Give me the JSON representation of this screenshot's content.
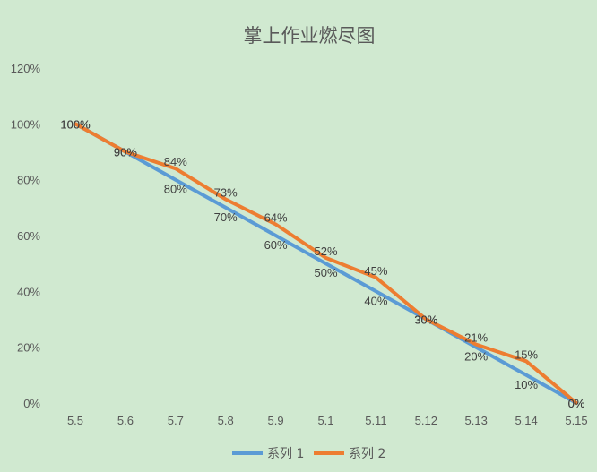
{
  "chart_data": {
    "type": "line",
    "title": "掌上作业燃尽图",
    "xlabel": "",
    "ylabel": "",
    "categories": [
      "5.5",
      "5.6",
      "5.7",
      "5.8",
      "5.9",
      "5.1",
      "5.11",
      "5.12",
      "5.13",
      "5.14",
      "5.15"
    ],
    "ylim": [
      0,
      120
    ],
    "yticks": [
      "0%",
      "20%",
      "40%",
      "60%",
      "80%",
      "100%",
      "120%"
    ],
    "grid": false,
    "legend_position": "bottom",
    "series": [
      {
        "name": "系列 1",
        "color": "#5b9bd5",
        "values": [
          100,
          90,
          80,
          70,
          60,
          50,
          40,
          30,
          20,
          10,
          0
        ],
        "labels": [
          "100%",
          "90%",
          "80%",
          "70%",
          "60%",
          "50%",
          "40%",
          "30%",
          "20%",
          "10%",
          "0%"
        ]
      },
      {
        "name": "系列 2",
        "color": "#ed7d31",
        "values": [
          100,
          90,
          84,
          73,
          64,
          52,
          45,
          30,
          21,
          15,
          0
        ],
        "labels": [
          "100%",
          "90%",
          "84%",
          "73%",
          "64%",
          "52%",
          "45%",
          "30%",
          "21%",
          "15%",
          "0%"
        ]
      }
    ]
  }
}
